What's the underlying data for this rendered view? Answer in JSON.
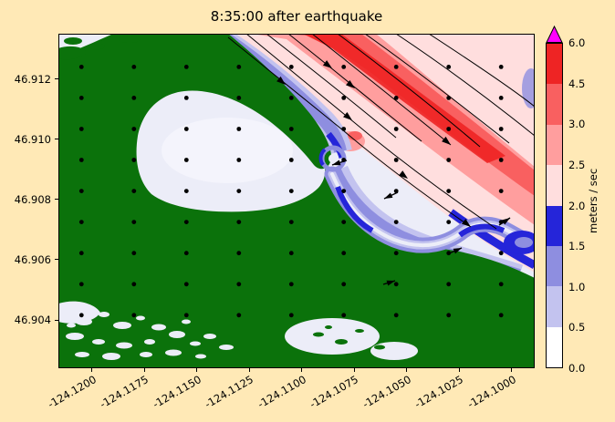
{
  "colors": {
    "background": "#ffe9b6",
    "water_base": "#ecedf8"
  },
  "chart_data": {
    "type": "heatmap",
    "title": "8:35:00 after earthquake",
    "x_ticks": [
      "-124.1200",
      "-124.1175",
      "-124.1150",
      "-124.1125",
      "-124.1100",
      "-124.1075",
      "-124.1050",
      "-124.1025",
      "-124.1000"
    ],
    "y_ticks": [
      "46.912",
      "46.910",
      "46.908",
      "46.906",
      "46.904"
    ],
    "x_range": [
      -124.1216,
      -124.0989
    ],
    "y_range": [
      46.9024,
      46.9135
    ],
    "grid": false,
    "legend_position": "right-colorbar",
    "land_color": "#0b720b",
    "colorbar": {
      "label": "meters / sec",
      "levels": [
        0.0,
        0.5,
        1.0,
        1.5,
        2.0,
        2.5,
        3.0,
        4.5,
        6.0
      ],
      "tick_labels": [
        "0.0",
        "0.5",
        "1.0",
        "1.5",
        "2.0",
        "2.5",
        "3.0",
        "4.5",
        "6.0"
      ],
      "band_colors": [
        "#ffffff",
        "#c3c3ef",
        "#8e8ee0",
        "#2525d9",
        "#ffdede",
        "#ff9e9e",
        "#f96060",
        "#ee2424"
      ],
      "over_color": "#ff00ff"
    },
    "quiver_grid": {
      "lon_start": -124.1205,
      "lon_step": 0.0025,
      "cols": 9,
      "lat_start": 46.9124,
      "lat_step": 0.00103,
      "rows": 9,
      "dot_color": "#000000"
    }
  }
}
